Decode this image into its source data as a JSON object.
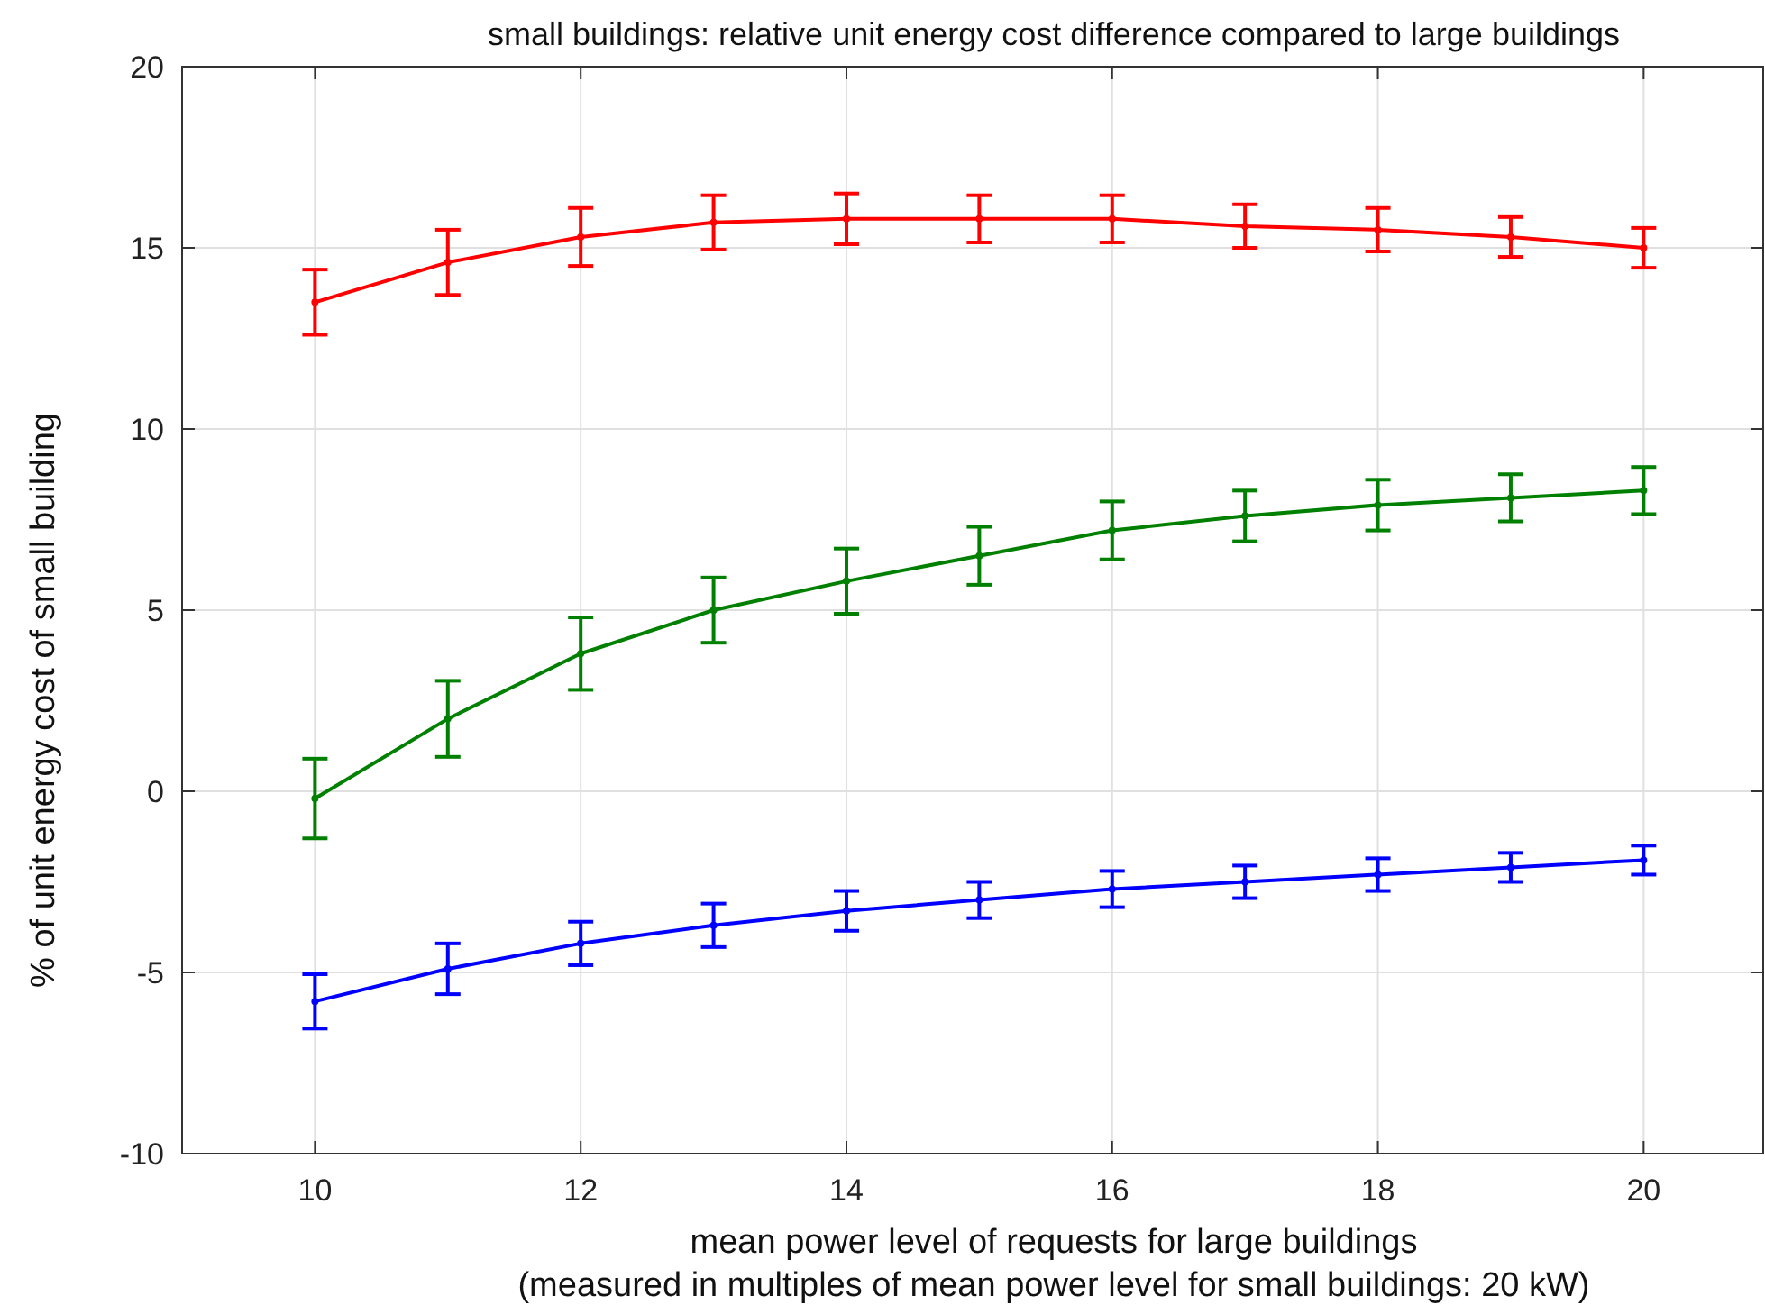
{
  "chart_data": {
    "type": "line",
    "title": "small buildings: relative unit energy cost difference compared to large buildings",
    "xlabel": "mean power level of requests for large buildings\n(measured in multiples of mean power level for small buildings: 20 kW)",
    "ylabel": "% of unit energy cost of small building",
    "x": [
      10,
      11,
      12,
      13,
      14,
      15,
      16,
      17,
      18,
      19,
      20
    ],
    "series": [
      {
        "color": "#ff0000",
        "values": [
          13.5,
          14.6,
          15.3,
          15.7,
          15.8,
          15.8,
          15.8,
          15.6,
          15.5,
          15.3,
          15.0
        ],
        "errors": [
          0.9,
          0.9,
          0.8,
          0.75,
          0.7,
          0.65,
          0.65,
          0.6,
          0.6,
          0.55,
          0.55
        ]
      },
      {
        "color": "#008000",
        "values": [
          -0.2,
          2.0,
          3.8,
          5.0,
          5.8,
          6.5,
          7.2,
          7.6,
          7.9,
          8.1,
          8.3
        ],
        "errors": [
          1.1,
          1.05,
          1.0,
          0.9,
          0.9,
          0.8,
          0.8,
          0.7,
          0.7,
          0.65,
          0.65
        ]
      },
      {
        "color": "#0000ff",
        "values": [
          -5.8,
          -4.9,
          -4.2,
          -3.7,
          -3.3,
          -3.0,
          -2.7,
          -2.5,
          -2.3,
          -2.1,
          -1.9
        ],
        "errors": [
          0.75,
          0.7,
          0.6,
          0.6,
          0.55,
          0.5,
          0.5,
          0.45,
          0.45,
          0.4,
          0.4
        ]
      }
    ],
    "xlim": [
      9,
      20.9
    ],
    "xticks": [
      10,
      12,
      14,
      16,
      18,
      20
    ],
    "ylim": [
      -10,
      20
    ],
    "yticks": [
      -10,
      -5,
      0,
      5,
      10,
      15,
      20
    ],
    "grid": true,
    "marker": "circle",
    "line_style": "solid"
  }
}
